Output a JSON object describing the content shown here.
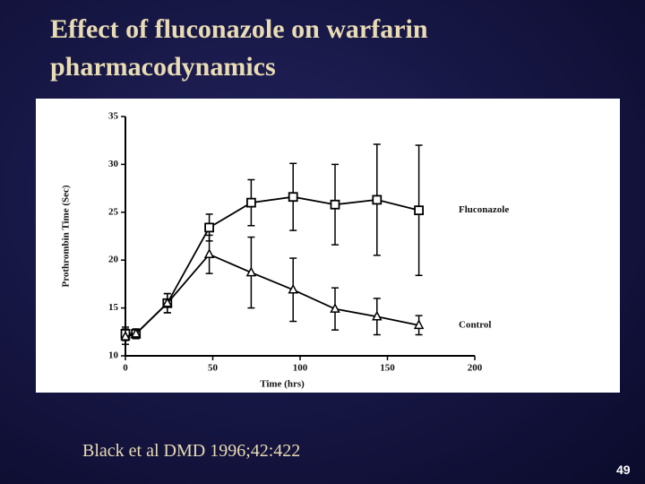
{
  "title": "Effect of fluconazole on warfarin pharmacodynamics",
  "citation": "Black et al DMD 1996;42:422",
  "page_number": "49",
  "chart_data": {
    "type": "line",
    "xlabel": "Time (hrs)",
    "ylabel": "Prothrombin Time (Sec)",
    "x": [
      0,
      6,
      24,
      48,
      72,
      96,
      120,
      144,
      168
    ],
    "xlim": [
      0,
      200
    ],
    "xticks": [
      0,
      50,
      100,
      150,
      200
    ],
    "ylim": [
      10,
      35
    ],
    "yticks": [
      10,
      15,
      20,
      25,
      30,
      35
    ],
    "grid": false,
    "series": [
      {
        "name": "Fluconazole",
        "color": "#000000",
        "marker": "square",
        "values": [
          12.3,
          12.3,
          15.5,
          23.4,
          26.0,
          26.6,
          25.8,
          26.3,
          25.2
        ],
        "errors": [
          0.7,
          0.5,
          1.0,
          1.4,
          2.4,
          3.5,
          4.2,
          5.8,
          6.8
        ]
      },
      {
        "name": "Control",
        "color": "#000000",
        "marker": "triangle",
        "values": [
          12.0,
          12.3,
          15.5,
          20.6,
          18.7,
          16.9,
          14.9,
          14.1,
          13.2
        ],
        "errors": [
          0.8,
          0.5,
          1.0,
          2.0,
          3.7,
          3.3,
          2.2,
          1.9,
          1.0
        ]
      }
    ]
  }
}
